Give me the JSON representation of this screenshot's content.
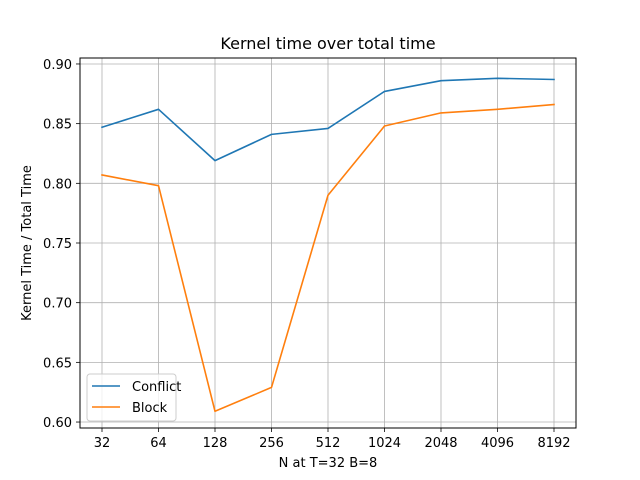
{
  "chart_data": {
    "type": "line",
    "title": "Kernel time over total time",
    "xlabel": "N at T=32 B=8",
    "ylabel": "Kernel Time / Total Time",
    "categories": [
      "32",
      "64",
      "128",
      "256",
      "512",
      "1024",
      "2048",
      "4096",
      "8192"
    ],
    "ylim": [
      0.6,
      0.9
    ],
    "yticks": [
      "0.60",
      "0.65",
      "0.70",
      "0.75",
      "0.80",
      "0.85",
      "0.90"
    ],
    "grid": true,
    "legend_position": "lower-left",
    "series": [
      {
        "name": "Conflict",
        "color": "#1f77b4",
        "values": [
          0.847,
          0.862,
          0.819,
          0.841,
          0.846,
          0.877,
          0.886,
          0.888,
          0.887
        ]
      },
      {
        "name": "Block",
        "color": "#ff7f0e",
        "values": [
          0.807,
          0.798,
          0.609,
          0.629,
          0.79,
          0.848,
          0.859,
          0.862,
          0.866
        ]
      }
    ]
  }
}
